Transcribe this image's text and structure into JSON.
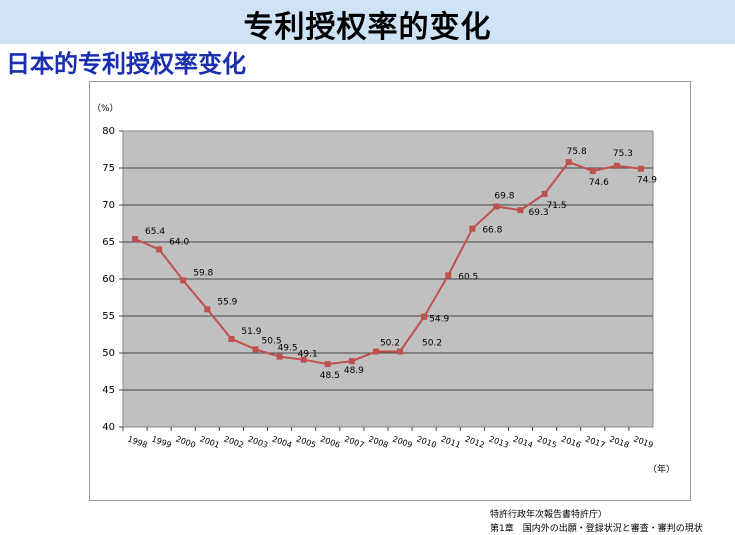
{
  "header": {
    "title": "专利授权率的变化",
    "subtitle": "日本的专利授权率变化"
  },
  "source": {
    "line1": "特許行政年次報告書特許庁）",
    "line2": "第1章　国内外の出願・登録状況と審査・審判の現状"
  },
  "colors": {
    "title_bg": "#cfe3f6",
    "subtitle": "#1a2fb0",
    "plot_bg": "#c0c0c0",
    "series": "#c0504d"
  },
  "chart_data": {
    "type": "line",
    "title": "",
    "ylabel": "（%）",
    "xlabel": "（年）",
    "ylim": [
      40,
      80
    ],
    "yticks": [
      40,
      45,
      50,
      55,
      60,
      65,
      70,
      75,
      80
    ],
    "grid": true,
    "categories": [
      "1998",
      "1999",
      "2000",
      "2001",
      "2002",
      "2003",
      "2004",
      "2005",
      "2006",
      "2007",
      "2008",
      "2009",
      "2010",
      "2011",
      "2012",
      "2013",
      "2014",
      "2015",
      "2016",
      "2017",
      "2018",
      "2019"
    ],
    "series": [
      {
        "values": [
          65.4,
          64.0,
          59.8,
          55.9,
          51.9,
          50.5,
          49.5,
          49.1,
          48.5,
          48.9,
          50.2,
          50.2,
          54.9,
          60.5,
          66.8,
          69.8,
          69.3,
          71.5,
          75.8,
          74.6,
          75.3,
          74.9
        ],
        "labels": [
          "65.4",
          "64.0",
          "59.8",
          "55.9",
          "51.9",
          "50.5",
          "49.5",
          "49.1",
          "48.5",
          "48.9",
          "50.2",
          "50.2",
          "54.9",
          "60.5",
          "66.8",
          "69.8",
          "69.3",
          "71.5",
          "75.8",
          "74.6",
          "75.3",
          "74.9"
        ]
      }
    ]
  }
}
